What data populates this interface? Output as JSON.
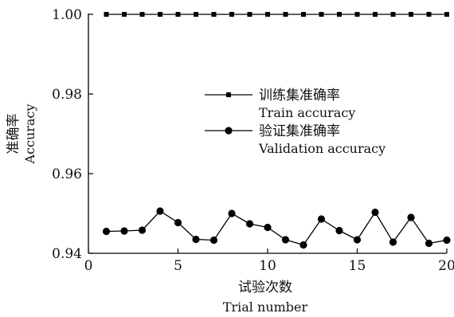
{
  "chart_data": {
    "type": "line",
    "xlabel": "试验次数",
    "xlabel_en": "Trial number",
    "ylabel": "准确率",
    "ylabel_en": "Accuracy",
    "xlim": [
      0,
      20
    ],
    "ylim": [
      0.94,
      1.0
    ],
    "x_ticks": [
      0,
      5,
      10,
      15,
      20
    ],
    "x_tick_labels": [
      "0",
      "5",
      "10",
      "15",
      "20"
    ],
    "y_ticks": [
      0.94,
      0.96,
      0.98,
      1.0
    ],
    "y_tick_labels": [
      "0.94",
      "0.96",
      "0.98",
      "1.00"
    ],
    "grid": false,
    "legend_position": "center",
    "x": [
      1,
      2,
      3,
      4,
      5,
      6,
      7,
      8,
      9,
      10,
      11,
      12,
      13,
      14,
      15,
      16,
      17,
      18,
      19,
      20
    ],
    "series": [
      {
        "name": "训练集准确率",
        "name_en": "Train accuracy",
        "marker": "square",
        "color": "#000000",
        "values": [
          1.0,
          1.0,
          1.0,
          1.0,
          1.0,
          1.0,
          1.0,
          1.0,
          1.0,
          1.0,
          1.0,
          1.0,
          1.0,
          1.0,
          1.0,
          1.0,
          1.0,
          1.0,
          1.0,
          1.0
        ]
      },
      {
        "name": "验证集准确率",
        "name_en": "Validation accuracy",
        "marker": "circle",
        "color": "#000000",
        "values": [
          0.9455,
          0.9456,
          0.9458,
          0.9506,
          0.9477,
          0.9435,
          0.9433,
          0.95,
          0.9474,
          0.9465,
          0.9434,
          0.9421,
          0.9486,
          0.9457,
          0.9434,
          0.9503,
          0.9428,
          0.949,
          0.9425,
          0.9433
        ]
      }
    ]
  }
}
